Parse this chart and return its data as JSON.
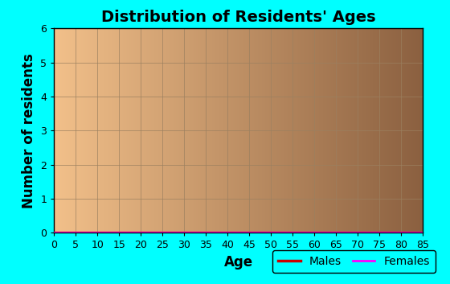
{
  "title": "Distribution of Residents' Ages",
  "xlabel": "Age",
  "ylabel": "Number of residents",
  "xlim": [
    0,
    85
  ],
  "ylim": [
    0,
    6
  ],
  "xticks": [
    0,
    5,
    10,
    15,
    20,
    25,
    30,
    35,
    40,
    45,
    50,
    55,
    60,
    65,
    70,
    75,
    80,
    85
  ],
  "yticks": [
    0,
    1,
    2,
    3,
    4,
    5,
    6
  ],
  "figure_bg": "#00FFFF",
  "plot_bg_left": "#F2C08A",
  "plot_bg_right": "#8B6040",
  "males_color": "#CC0000",
  "females_color": "#FF00FF",
  "males_y": 0,
  "females_y": 0,
  "title_fontsize": 14,
  "axis_label_fontsize": 12,
  "tick_fontsize": 9,
  "legend_labels": [
    "Males",
    "Females"
  ],
  "grid_color": "#9B8060",
  "grid_alpha": 0.8,
  "grid_linewidth": 0.6,
  "males_linewidth": 2.5,
  "females_linewidth": 2.0
}
